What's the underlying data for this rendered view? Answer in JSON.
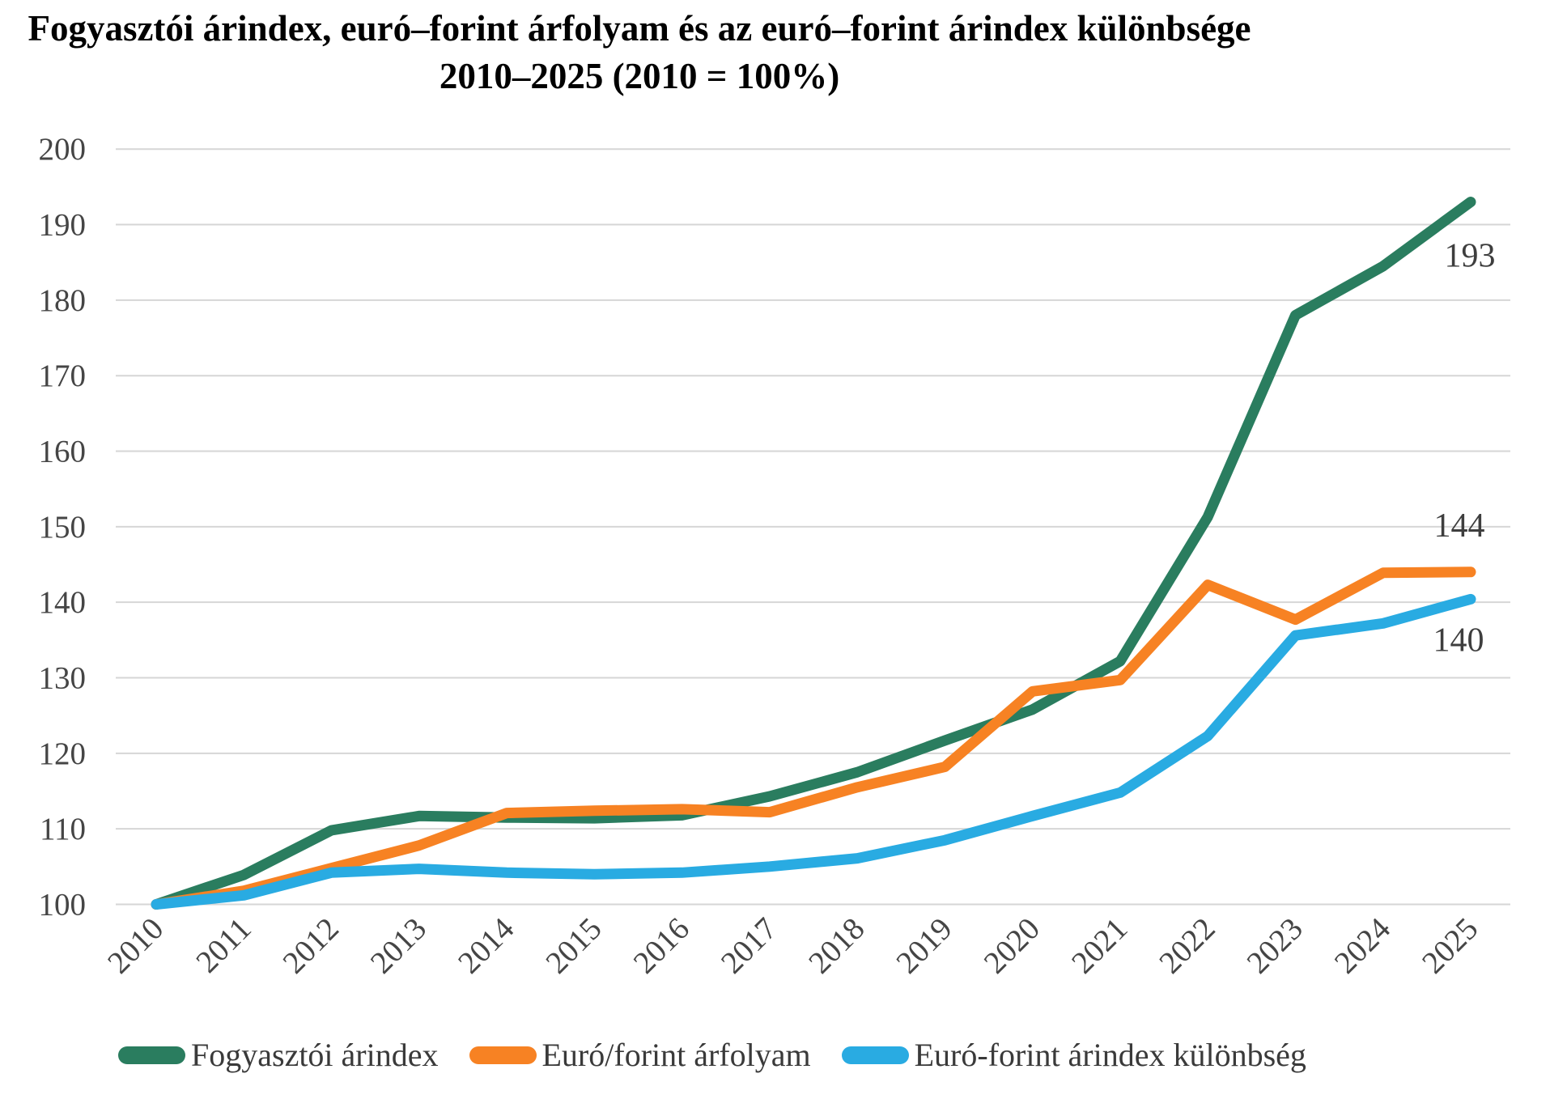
{
  "title": {
    "line1": "Fogyasztói árindex, euró–forint árfolyam és az euró–forint árindex különbsége",
    "line2": "2010–2025 (2010 = 100%)"
  },
  "colors": {
    "grid": "#d6d6d6",
    "tick_text": "#454545",
    "end_label_text": "#3e3e3e",
    "title_text": "#000000",
    "series_green": "#2a7d5f",
    "series_orange": "#f78223",
    "series_blue": "#29abe2"
  },
  "chart_data": {
    "type": "line",
    "title": "Fogyasztói árindex, euró–forint árfolyam és az euró–forint árindex különbsége 2010–2025 (2010 = 100%)",
    "categories": [
      "2010",
      "2011",
      "2012",
      "2013",
      "2014",
      "2015",
      "2016",
      "2017",
      "2018",
      "2019",
      "2020",
      "2021",
      "2022",
      "2023",
      "2024",
      "2025"
    ],
    "yticks": [
      100,
      110,
      120,
      130,
      140,
      150,
      160,
      170,
      180,
      190,
      200
    ],
    "ylim": [
      100,
      200
    ],
    "grid": true,
    "legend_position": "bottom",
    "series": [
      {
        "name": "Fogyasztói árindex",
        "color": "#2a7d5f",
        "values": [
          100,
          103.9,
          109.8,
          111.7,
          111.5,
          111.4,
          111.8,
          114.3,
          117.5,
          121.7,
          125.8,
          132.2,
          151.3,
          178.0,
          184.5,
          193.0
        ],
        "end_label": "193"
      },
      {
        "name": "Euró/forint árfolyam",
        "color": "#f78223",
        "values": [
          100,
          101.8,
          104.8,
          107.8,
          112.1,
          112.4,
          112.6,
          112.2,
          115.5,
          118.2,
          128.2,
          129.7,
          142.3,
          137.7,
          143.9,
          144.0
        ],
        "end_label": "144"
      },
      {
        "name": "Euró-forint árindex különbség",
        "color": "#29abe2",
        "values": [
          100,
          101.2,
          104.2,
          104.7,
          104.2,
          104.0,
          104.2,
          105.0,
          106.1,
          108.5,
          111.7,
          114.8,
          122.3,
          135.6,
          137.2,
          140.4
        ],
        "end_label": "140"
      }
    ]
  }
}
